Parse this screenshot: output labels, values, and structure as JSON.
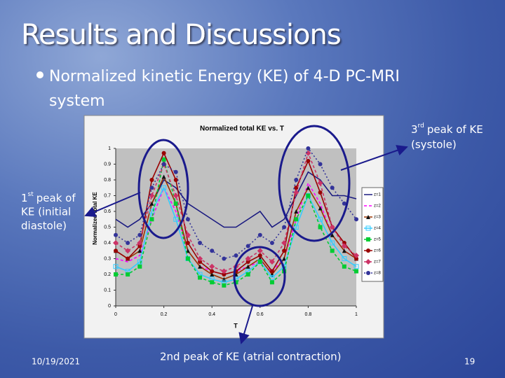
{
  "slide": {
    "title": "Results and Discussions",
    "bullet_line1": "Normalized kinetic Energy (KE) of 4-D PC-MRI",
    "bullet_line2": "system",
    "note_third": {
      "number": "3",
      "suffix": "rd",
      "text": "peak of KE",
      "line2": "(systole)"
    },
    "note_first": {
      "number": "1",
      "suffix": "st",
      "text": "peak of",
      "line2": "KE (initial",
      "line3": "diastole)"
    },
    "note_second": "2nd peak of KE (atrial contraction)",
    "date": "10/19/2021",
    "page": "19"
  },
  "chart_data": {
    "type": "line",
    "title": "Normalized total KE vs. T",
    "x_label": "T",
    "y_label": "Normalized total KE",
    "x": [
      0,
      0.05,
      0.1,
      0.15,
      0.2,
      0.25,
      0.3,
      0.35,
      0.4,
      0.45,
      0.5,
      0.55,
      0.6,
      0.65,
      0.7,
      0.75,
      0.8,
      0.85,
      0.9,
      0.95,
      1
    ],
    "xlim": [
      0,
      1
    ],
    "xticks": [
      0,
      0.2,
      0.4,
      0.6,
      0.8,
      1
    ],
    "ylim": [
      0,
      1
    ],
    "yticks": [
      0,
      0.1,
      0.2,
      0.3,
      0.4,
      0.5,
      0.6,
      0.7,
      0.8,
      0.9,
      1
    ],
    "series": [
      {
        "name": "z=1",
        "color": "#1a1a80",
        "dash": "none",
        "marker": "none",
        "values": [
          0.55,
          0.5,
          0.55,
          0.65,
          0.8,
          0.75,
          0.65,
          0.6,
          0.55,
          0.5,
          0.5,
          0.55,
          0.6,
          0.5,
          0.55,
          0.7,
          0.85,
          0.8,
          0.7,
          0.7,
          0.68
        ]
      },
      {
        "name": "z=2",
        "color": "#ff00ff",
        "dash": "4 3",
        "marker": "none",
        "values": [
          0.3,
          0.28,
          0.32,
          0.55,
          0.75,
          0.6,
          0.35,
          0.25,
          0.22,
          0.2,
          0.22,
          0.25,
          0.28,
          0.22,
          0.3,
          0.55,
          0.78,
          0.65,
          0.45,
          0.35,
          0.3
        ]
      },
      {
        "name": "z=3",
        "color": "#993300",
        "dash": "none",
        "marker": "triangle",
        "values": [
          0.35,
          0.3,
          0.35,
          0.65,
          0.82,
          0.65,
          0.35,
          0.25,
          0.2,
          0.17,
          0.2,
          0.25,
          0.3,
          0.2,
          0.3,
          0.6,
          0.75,
          0.62,
          0.45,
          0.35,
          0.3
        ]
      },
      {
        "name": "z=4",
        "color": "#33ccff",
        "dash": "none",
        "marker": "square-open",
        "values": [
          0.25,
          0.22,
          0.28,
          0.6,
          0.75,
          0.55,
          0.3,
          0.2,
          0.17,
          0.15,
          0.17,
          0.22,
          0.28,
          0.18,
          0.25,
          0.5,
          0.7,
          0.55,
          0.4,
          0.3,
          0.25
        ]
      },
      {
        "name": "z=5",
        "color": "#00cc33",
        "dash": "4 3",
        "marker": "square",
        "values": [
          0.2,
          0.2,
          0.25,
          0.55,
          0.93,
          0.65,
          0.3,
          0.18,
          0.15,
          0.13,
          0.15,
          0.2,
          0.28,
          0.15,
          0.22,
          0.55,
          0.7,
          0.5,
          0.35,
          0.25,
          0.22
        ]
      },
      {
        "name": "z=6",
        "color": "#990000",
        "dash": "none",
        "marker": "circle",
        "values": [
          0.35,
          0.3,
          0.38,
          0.8,
          0.97,
          0.8,
          0.4,
          0.28,
          0.22,
          0.2,
          0.22,
          0.28,
          0.32,
          0.22,
          0.35,
          0.75,
          0.92,
          0.72,
          0.5,
          0.4,
          0.3
        ]
      },
      {
        "name": "z=7",
        "color": "#cc3366",
        "dash": "4 3",
        "marker": "diamond",
        "values": [
          0.4,
          0.35,
          0.4,
          0.7,
          0.9,
          0.7,
          0.45,
          0.3,
          0.25,
          0.22,
          0.25,
          0.3,
          0.35,
          0.28,
          0.4,
          0.72,
          0.97,
          0.78,
          0.5,
          0.38,
          0.32
        ]
      },
      {
        "name": "z=8",
        "color": "#333399",
        "dash": "2 3",
        "marker": "circle",
        "values": [
          0.45,
          0.4,
          0.45,
          0.75,
          0.9,
          0.85,
          0.55,
          0.4,
          0.35,
          0.3,
          0.32,
          0.38,
          0.45,
          0.4,
          0.5,
          0.8,
          1.0,
          0.9,
          0.75,
          0.65,
          0.55
        ]
      }
    ]
  }
}
